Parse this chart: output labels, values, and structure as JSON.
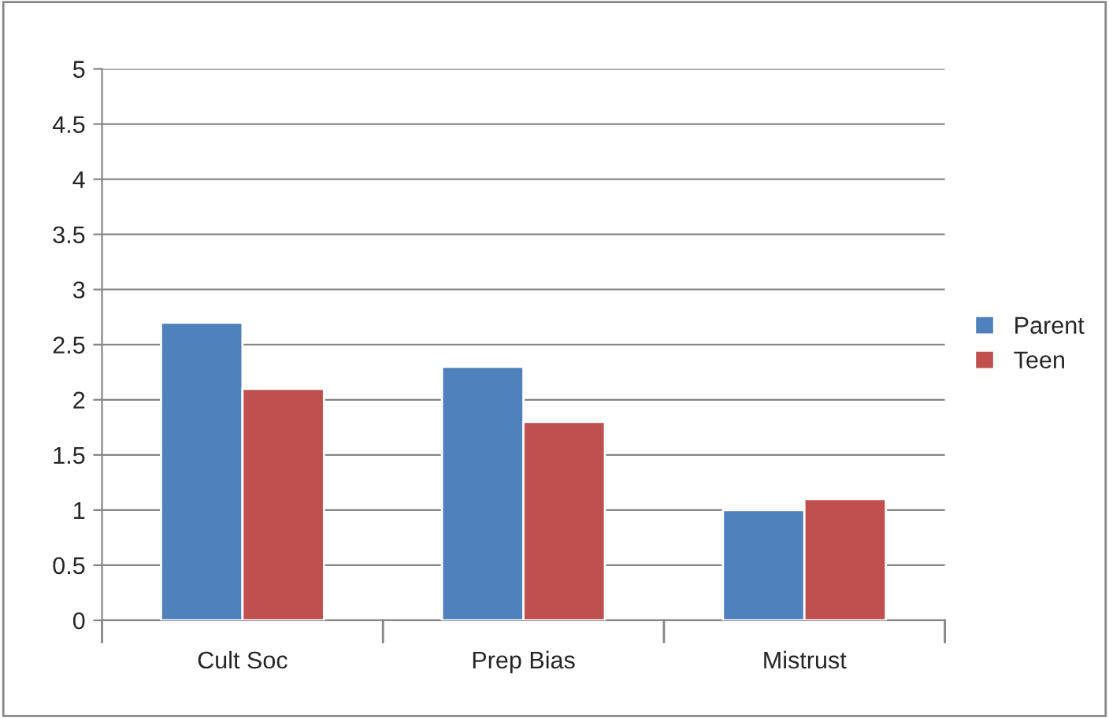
{
  "chart_data": {
    "type": "bar",
    "categories": [
      "Cult Soc",
      "Prep Bias",
      "Mistrust"
    ],
    "series": [
      {
        "name": "Parent",
        "color": "#4f81bd",
        "values": [
          2.7,
          2.3,
          1.0
        ]
      },
      {
        "name": "Teen",
        "color": "#c0504d",
        "values": [
          2.1,
          1.8,
          1.1
        ]
      }
    ],
    "ylim": [
      0,
      5
    ],
    "yticks": [
      0,
      0.5,
      1,
      1.5,
      2,
      2.5,
      3,
      3.5,
      4,
      4.5,
      5
    ],
    "grid": "y",
    "legend": "right"
  }
}
